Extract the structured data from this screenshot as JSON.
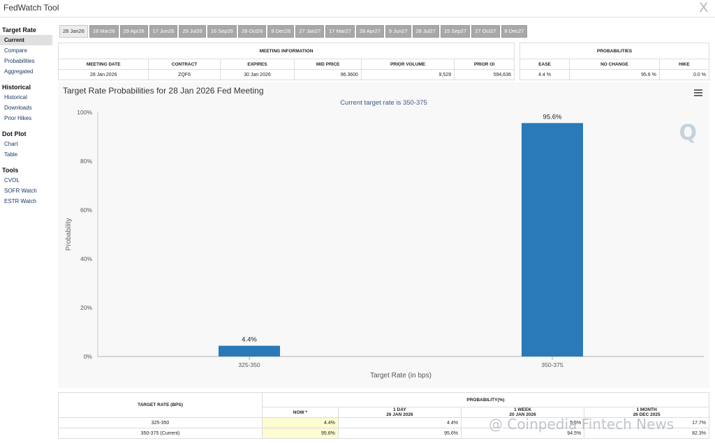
{
  "app": {
    "title": "FedWatch Tool",
    "close_glyph": "X"
  },
  "sidebar": {
    "sections": [
      {
        "heading": "Target Rate",
        "items": [
          "Current",
          "Compare",
          "Probabilities",
          "Aggregated"
        ]
      },
      {
        "heading": "Historical",
        "items": [
          "Historical",
          "Downloads",
          "Prior Hikes"
        ]
      },
      {
        "heading": "Dot Plot",
        "items": [
          "Chart",
          "Table"
        ]
      },
      {
        "heading": "Tools",
        "items": [
          "CVOL",
          "SOFR Watch",
          "ESTR Watch"
        ]
      }
    ],
    "active_item": "Current"
  },
  "tabs": [
    "28 Jan26",
    "18 Mar26",
    "29 Apr26",
    "17 Jun26",
    "29 Jul26",
    "16 Sep26",
    "28 Oct26",
    "9 Dec26",
    "27 Jan27",
    "17 Mar27",
    "28 Apr27",
    "9 Jun27",
    "28 Jul27",
    "15 Sep27",
    "27 Oct27",
    "8 Dec27"
  ],
  "meeting_info": {
    "title": "MEETING INFORMATION",
    "headers": [
      "MEETING DATE",
      "CONTRACT",
      "EXPIRES",
      "MID PRICE",
      "PRIOR VOLUME",
      "PRIOR OI"
    ],
    "row": [
      "28 Jan 2026",
      "ZQF6",
      "30 Jan 2026",
      "96.3600",
      "9,529",
      "594,636"
    ]
  },
  "probabilities": {
    "title": "PROBABILITIES",
    "headers": [
      "EASE",
      "NO CHANGE",
      "HIKE"
    ],
    "row": [
      "4.4 %",
      "95.6 %",
      "0.0 %"
    ]
  },
  "chart": {
    "title": "Target Rate Probabilities for 28 Jan 2026 Fed Meeting",
    "subtitle": "Current target rate is 350-375",
    "logo_letter": "Q",
    "bar_color": "#2a7ab9"
  },
  "chart_data": {
    "type": "bar",
    "categories": [
      "325-350",
      "350-375"
    ],
    "values": [
      4.4,
      95.6
    ],
    "data_labels": [
      "4.4%",
      "95.6%"
    ],
    "xlabel": "Target Rate (in bps)",
    "ylabel": "Probability",
    "ylim": [
      0,
      100
    ],
    "yticks": [
      "0%",
      "20%",
      "40%",
      "60%",
      "80%",
      "100%"
    ],
    "grid": false
  },
  "bottom_table": {
    "col1_header": "TARGET RATE (BPS)",
    "group_header": "PROBABILITY(%)",
    "sub_headers": [
      {
        "line1": "NOW *",
        "line2": ""
      },
      {
        "line1": "1 DAY",
        "line2": "26 JAN 2026"
      },
      {
        "line1": "1 WEEK",
        "line2": "20 JAN 2026"
      },
      {
        "line1": "1 MONTH",
        "line2": "26 DEC 2025"
      }
    ],
    "rows": [
      {
        "rate": "325-350",
        "values": [
          "4.4%",
          "4.4%",
          "5.5%",
          "17.7%"
        ]
      },
      {
        "rate": "350-375 (Current)",
        "values": [
          "95.6%",
          "95.6%",
          "94.5%",
          "82.3%"
        ]
      }
    ]
  },
  "watermark": "@ Coinpedia Fintech News"
}
